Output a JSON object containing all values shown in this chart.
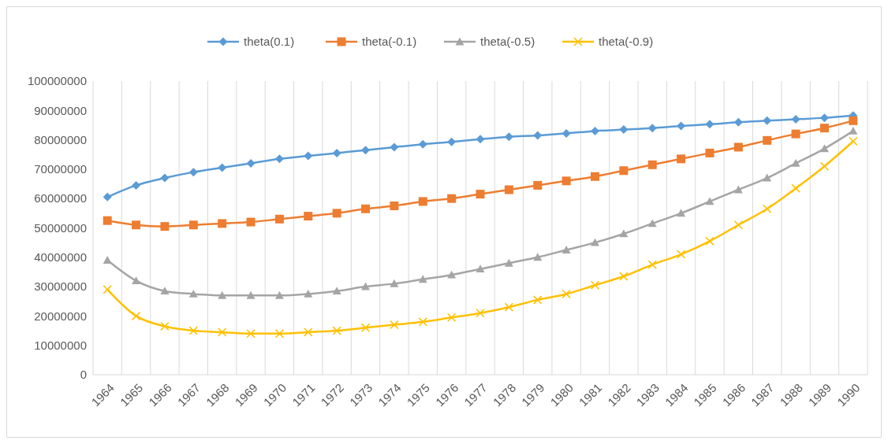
{
  "chart_data": {
    "type": "line",
    "categories": [
      "1964",
      "1965",
      "1966",
      "1967",
      "1968",
      "1969",
      "1970",
      "1971",
      "1972",
      "1973",
      "1974",
      "1975",
      "1976",
      "1977",
      "1978",
      "1979",
      "1980",
      "1981",
      "1982",
      "1983",
      "1984",
      "1985",
      "1986",
      "1987",
      "1988",
      "1989",
      "1990"
    ],
    "series": [
      {
        "name": "theta(0.1)",
        "color": "#5b9bd5",
        "marker": "diamond",
        "values": [
          60500000,
          64500000,
          67000000,
          69000000,
          70500000,
          72000000,
          73500000,
          74500000,
          75500000,
          76500000,
          77500000,
          78500000,
          79300000,
          80200000,
          81000000,
          81500000,
          82200000,
          83000000,
          83500000,
          84000000,
          84700000,
          85300000,
          86000000,
          86500000,
          87000000,
          87500000,
          88300000
        ]
      },
      {
        "name": "theta(-0.1)",
        "color": "#ed7d31",
        "marker": "square",
        "values": [
          52500000,
          51000000,
          50500000,
          51000000,
          51500000,
          52000000,
          53000000,
          54000000,
          55000000,
          56500000,
          57500000,
          59000000,
          60000000,
          61500000,
          63000000,
          64500000,
          66000000,
          67500000,
          69500000,
          71500000,
          73500000,
          75500000,
          77500000,
          79800000,
          82000000,
          84000000,
          86500000
        ]
      },
      {
        "name": "theta(-0.5)",
        "color": "#a5a5a5",
        "marker": "triangle",
        "values": [
          39000000,
          32000000,
          28500000,
          27500000,
          27000000,
          27000000,
          27000000,
          27500000,
          28500000,
          30000000,
          31000000,
          32500000,
          34000000,
          36000000,
          38000000,
          40000000,
          42500000,
          45000000,
          48000000,
          51500000,
          55000000,
          59000000,
          63000000,
          67000000,
          72000000,
          77000000,
          83000000
        ]
      },
      {
        "name": "theta(-0.9)",
        "color": "#ffc000",
        "marker": "cross",
        "values": [
          29000000,
          20000000,
          16500000,
          15000000,
          14500000,
          14000000,
          14000000,
          14500000,
          15000000,
          16000000,
          17000000,
          18000000,
          19500000,
          21000000,
          23000000,
          25500000,
          27500000,
          30500000,
          33500000,
          37500000,
          41000000,
          45500000,
          51000000,
          56500000,
          63500000,
          71000000,
          79500000
        ]
      }
    ],
    "ylim": [
      0,
      100000000
    ],
    "yticks": [
      0,
      10000000,
      20000000,
      30000000,
      40000000,
      50000000,
      60000000,
      70000000,
      80000000,
      90000000,
      100000000
    ],
    "grid": "x",
    "legend": "top",
    "line_style": "solid"
  }
}
